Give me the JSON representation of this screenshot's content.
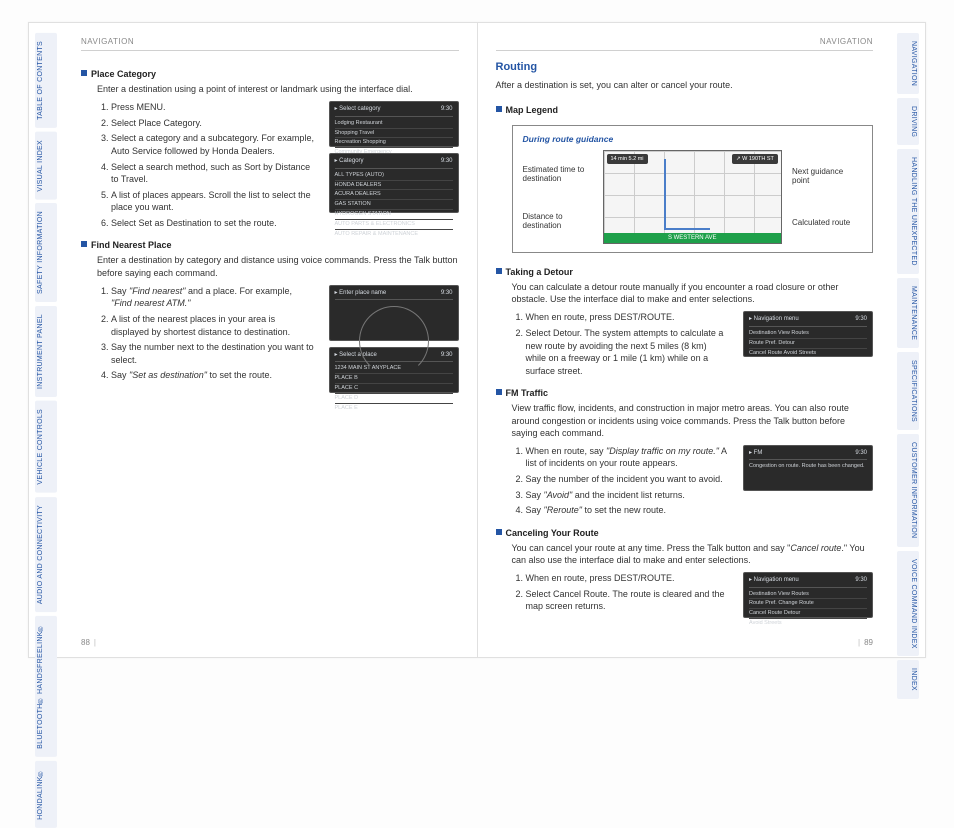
{
  "leftTabs": [
    "TABLE OF\nCONTENTS",
    "VISUAL INDEX",
    "SAFETY\nINFORMATION",
    "INSTRUMENT\nPANEL",
    "VEHICLE\nCONTROLS",
    "AUDIO AND\nCONNECTIVITY",
    "BLUETOOTH®\nHANDSFREELINK®",
    "HONDALINK®"
  ],
  "rightTabs": [
    "NAVIGATION",
    "DRIVING",
    "HANDLING THE\nUNEXPECTED",
    "MAINTENANCE",
    "SPECIFICATIONS",
    "CUSTOMER\nINFORMATION",
    "VOICE\nCOMMAND INDEX",
    "INDEX"
  ],
  "headerLabel": "NAVIGATION",
  "left": {
    "h1": "Place Category",
    "p1": "Enter a destination using a point of interest or landmark using the interface dial.",
    "steps1": [
      "Press MENU.",
      "Select Place Category.",
      "Select a category and a subcategory. For example, Auto Service followed by Honda Dealers.",
      "Select a search method, such as Sort by Distance to Travel.",
      "A list of places appears. Scroll the list to select the place you want.",
      "Select Set as Destination to set the route."
    ],
    "screenA": {
      "title": "Select category",
      "time": "9:30",
      "rows": [
        "Lodging              Restaurant",
        "Shopping           Travel",
        "Recreation         Shopping",
        "Community       Emergency"
      ]
    },
    "screenB": {
      "title": "Category",
      "time": "9:30",
      "rows": [
        "ALL TYPES (AUTO)",
        "HONDA DEALERS",
        "ACURA DEALERS",
        "GAS STATION",
        "HYDROGEN STATION",
        "AUTO PARTS & ELECTRONICS",
        "AUTO REPAIR & MAINTENANCE"
      ]
    },
    "h2": "Find Nearest Place",
    "p2": "Enter a destination by category and distance using voice commands. Press the Talk button before saying each command.",
    "steps2": [
      "Say <em class=\"cmd\">\"Find nearest\"</em> and a place. For example, <em class=\"cmd\">\"Find nearest ATM.\"</em>",
      "A list of the nearest places in your area is displayed by shortest distance to destination.",
      "Say the number next to the destination you want to select.",
      "Say <em class=\"cmd\">\"Set as destination\"</em> to set the route."
    ],
    "screenC": {
      "title": "Enter place name",
      "time": "9:30"
    },
    "screenD": {
      "title": "Select a place",
      "time": "9:30",
      "rows": [
        "1234 MAIN ST  ANYPLACE",
        "PLACE B",
        "PLACE C",
        "PLACE D",
        "PLACE E"
      ]
    },
    "pageNum": "88"
  },
  "right": {
    "title": "Routing",
    "p1": "After a destination is set, you can alter or cancel your route.",
    "h1": "Map Legend",
    "legend": {
      "caption": "During route guidance",
      "left": [
        "Estimated time to destination",
        "Distance to destination"
      ],
      "right": [
        "Next guidance point",
        "Calculated route"
      ],
      "chipTL": "14 min\n5.2 mi",
      "chipTR": "↗  W 190TH ST",
      "street": "S WESTERN AVE"
    },
    "h2": "Taking a Detour",
    "p2": "You can calculate a detour route manually if you encounter a road closure or other obstacle. Use the interface dial to make and enter selections.",
    "steps2": [
      "When en route, press DEST/ROUTE.",
      "Select Detour. The system attempts to calculate a new route by avoiding the next 5 miles (8 km) while on a freeway or 1 mile (1 km) while on a surface street."
    ],
    "screenE": {
      "title": "Navigation menu",
      "time": "9:30",
      "rows": [
        "Destination          View Routes",
        "Route Pref.          Detour",
        "Cancel Route      Avoid Streets"
      ]
    },
    "h3": "FM Traffic",
    "p3": "View traffic flow, incidents, and construction in major metro areas. You can also route around congestion or incidents using voice commands. Press the Talk button before saying each command.",
    "steps3": [
      "When en route, say <em class=\"cmd\">\"Display traffic on my route.\"</em> A list of incidents on your route appears.",
      "Say the number of the incident you want to avoid.",
      "Say <em class=\"cmd\">\"Avoid\"</em> and the incident list returns.",
      "Say <em class=\"cmd\">\"Reroute\"</em> to set the new route."
    ],
    "screenF": {
      "title": "FM",
      "time": "9:30",
      "rows": [
        "Congestion on route.\nRoute has been changed."
      ]
    },
    "h4": "Canceling Your Route",
    "p4": "You can cancel your route at any time. Press the Talk button and say \"<em class=\"cmd\">Cancel route</em>.\" You can also use the interface dial to make and enter selections.",
    "steps4": [
      "When en route, press DEST/ROUTE.",
      "Select Cancel Route. The route is cleared and the map screen returns."
    ],
    "screenG": {
      "title": "Navigation menu",
      "time": "9:30",
      "rows": [
        "Destination          View Routes",
        "Route Pref.          Change Route",
        "Cancel Route      Detour",
        "                           Avoid Streets"
      ]
    },
    "pageNum": "89"
  }
}
